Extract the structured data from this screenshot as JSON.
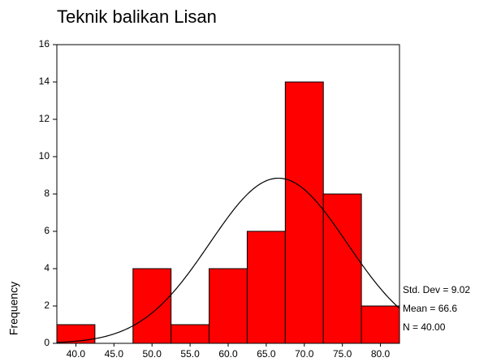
{
  "chart_data": {
    "type": "histogram",
    "title": "Teknik balikan Lisan",
    "ylabel": "Frequency",
    "bins": [
      37.5,
      42.5,
      47.5,
      52.5,
      57.5,
      62.5,
      67.5,
      72.5,
      77.5,
      82.5
    ],
    "values": [
      1,
      0,
      4,
      1,
      4,
      6,
      14,
      8,
      2
    ],
    "color": "#ff0000",
    "xlim": [
      37.5,
      82.5
    ],
    "xticks": [
      {
        "value": 40,
        "label": "40.0"
      },
      {
        "value": 45,
        "label": "45.0"
      },
      {
        "value": 50,
        "label": "50.0"
      },
      {
        "value": 55,
        "label": "55.0"
      },
      {
        "value": 60,
        "label": "60.0"
      },
      {
        "value": 65,
        "label": "65.0"
      },
      {
        "value": 70,
        "label": "70.0"
      },
      {
        "value": 75,
        "label": "75.0"
      },
      {
        "value": 80,
        "label": "80.0"
      }
    ],
    "ylim": [
      0,
      16
    ],
    "yticks": [
      0,
      2,
      4,
      6,
      8,
      10,
      12,
      14,
      16
    ],
    "stats": {
      "sd": {
        "value": 9.02,
        "label": "Std. Dev = 9.02"
      },
      "mean": {
        "value": 66.6,
        "label": "Mean = 66.6"
      },
      "n": {
        "value": 40,
        "label": "N = 40.00"
      }
    }
  }
}
